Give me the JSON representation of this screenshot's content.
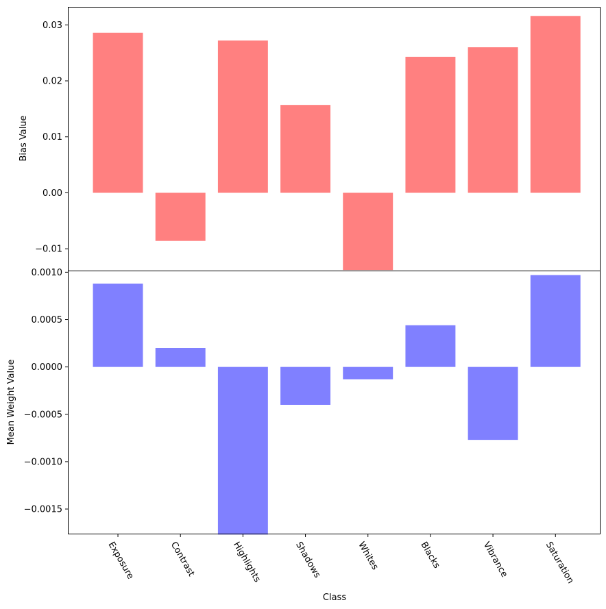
{
  "chart_data": [
    {
      "type": "bar",
      "categories": [
        "Exposure",
        "Contrast",
        "Highlights",
        "Shadows",
        "Whites",
        "Blacks",
        "Vibrance",
        "Saturation"
      ],
      "values": [
        0.0286,
        -0.0086,
        0.0272,
        0.0157,
        -0.0138,
        0.0243,
        0.026,
        0.0316
      ],
      "title": "",
      "xlabel": "",
      "ylabel": "Bias Value",
      "ylim": [
        -0.0139,
        0.0331
      ],
      "yticks": [
        -0.01,
        0.0,
        0.01,
        0.02,
        0.03
      ],
      "ytick_labels": [
        "−0.01",
        "0.00",
        "0.01",
        "0.02",
        "0.03"
      ],
      "color": "#ff8080",
      "grid": false,
      "legend": false
    },
    {
      "type": "bar",
      "categories": [
        "Exposure",
        "Contrast",
        "Highlights",
        "Shadows",
        "Whites",
        "Blacks",
        "Vibrance",
        "Saturation"
      ],
      "values": [
        0.00088,
        0.0002,
        -0.00177,
        -0.0004,
        -0.00013,
        0.00044,
        -0.00077,
        0.00097
      ],
      "title": "",
      "xlabel": "Class",
      "ylabel": "Mean Weight Value",
      "ylim": [
        -0.00176,
        0.00101
      ],
      "yticks": [
        -0.0015,
        -0.001,
        -0.0005,
        0.0,
        0.0005,
        0.001
      ],
      "ytick_labels": [
        "−0.0015",
        "−0.0010",
        "−0.0005",
        "0.0000",
        "0.0005",
        "0.0010"
      ],
      "color": "#8080ff",
      "grid": false,
      "legend": false
    }
  ]
}
